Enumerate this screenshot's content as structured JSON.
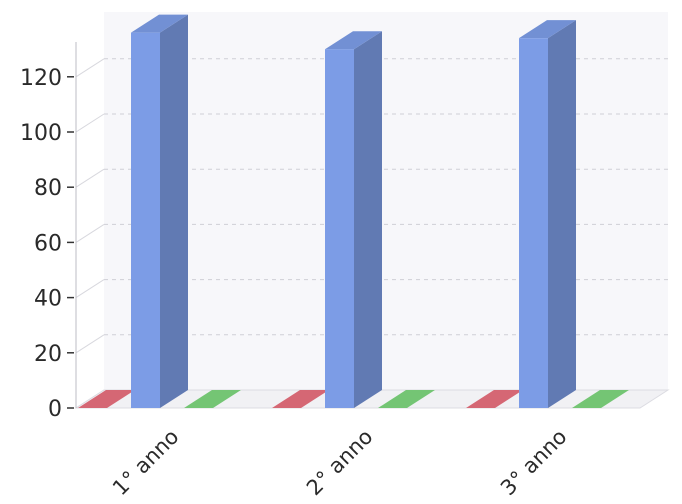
{
  "chart_data": {
    "type": "bar",
    "title": "",
    "xlabel": "",
    "ylabel": "",
    "categories": [
      "1° anno",
      "2° anno",
      "3° anno"
    ],
    "series": [
      {
        "color": "#e8707e",
        "values": [
          0,
          0,
          0
        ]
      },
      {
        "color": "#7c9ce6",
        "values": [
          136,
          130,
          134
        ]
      },
      {
        "color": "#7ed67e",
        "values": [
          0,
          0,
          0
        ]
      }
    ],
    "ylim": [
      0,
      140
    ],
    "yticks": [
      "0",
      "20",
      "40",
      "60",
      "80",
      "100",
      "120"
    ],
    "grid": true,
    "legend": "none",
    "style": "3d"
  }
}
